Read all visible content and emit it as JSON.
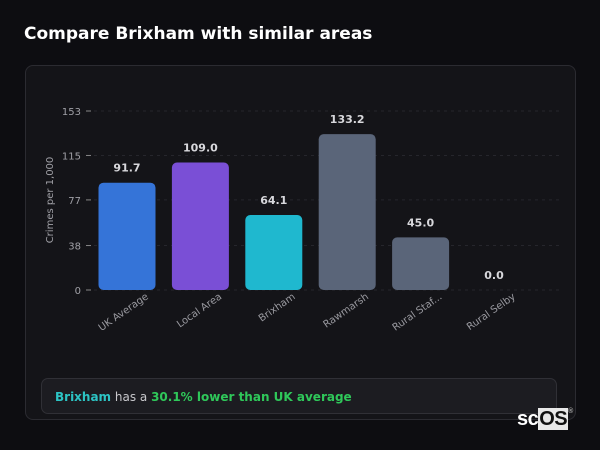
{
  "title": "Compare Brixham with similar areas",
  "chart_data": {
    "type": "bar",
    "categories": [
      "UK Average",
      "Local Area",
      "Brixham",
      "Rawmarsh",
      "Rural Staf...",
      "Rural Selby"
    ],
    "values": [
      91.7,
      109.0,
      64.1,
      133.2,
      45.0,
      0.0
    ],
    "data_labels": [
      "91.7",
      "109.0",
      "64.1",
      "133.2",
      "45.0",
      "0.0"
    ],
    "colors": [
      "#3574d8",
      "#7a4fd6",
      "#1fb8cf",
      "#5a6579",
      "#5a6579",
      "#5a6579"
    ],
    "ylabel": "Crimes per 1,000",
    "yticks": [
      0,
      38,
      77,
      115,
      153
    ],
    "ylim": [
      0,
      153
    ],
    "grid": true
  },
  "summary": {
    "area": "Brixham",
    "middle": " has a ",
    "comparison": "30.1% lower than UK average",
    "area_color": "#2cc4c4",
    "comparison_color": "#2fc85a"
  },
  "logo": {
    "a": "sc",
    "b": "OS",
    "mark": "®"
  }
}
